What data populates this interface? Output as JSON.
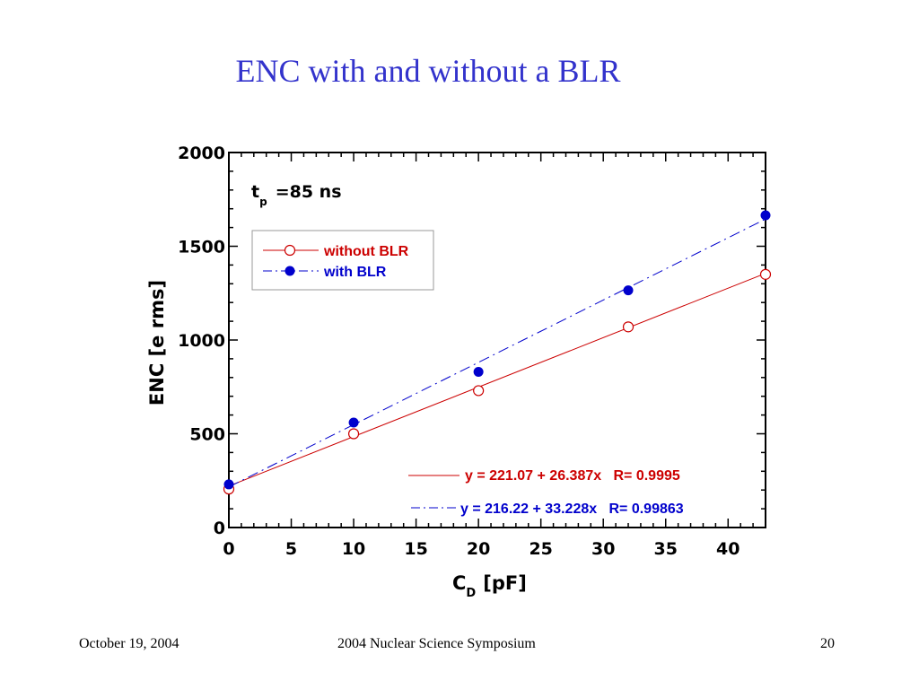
{
  "slide": {
    "title": "ENC with and without a BLR",
    "footer_left": "October 19, 2004",
    "footer_center": "2004 Nuclear Science Symposium",
    "footer_right": "20"
  },
  "chart_data": {
    "type": "scatter",
    "annotation": {
      "main": "t",
      "sub": "p",
      "suffix": "=85 ns"
    },
    "xlabel": {
      "main": "C",
      "sub": "D",
      "suffix": "[pF]"
    },
    "ylabel": "ENC [e rms]",
    "xlim": [
      0,
      43
    ],
    "ylim": [
      0,
      2000
    ],
    "xticks": [
      0,
      5,
      10,
      15,
      20,
      25,
      30,
      35,
      40
    ],
    "yticks": [
      0,
      500,
      1000,
      1500,
      2000
    ],
    "grid": false,
    "legend_position": "top-left",
    "series": [
      {
        "name": "without BLR",
        "color": "#cc0000",
        "marker": "open-circle",
        "line": "solid",
        "x": [
          0,
          10,
          20,
          32,
          43
        ],
        "y": [
          205,
          500,
          730,
          1070,
          1350
        ],
        "fit": {
          "intercept": 221.07,
          "slope": 26.387,
          "label": "y = 221.07 + 26.387x   R= 0.9995"
        }
      },
      {
        "name": "with BLR",
        "color": "#0000cc",
        "marker": "filled-circle",
        "line": "dash-dot",
        "x": [
          0,
          10,
          20,
          32,
          43
        ],
        "y": [
          230,
          560,
          830,
          1265,
          1665
        ],
        "fit": {
          "intercept": 216.22,
          "slope": 33.228,
          "label": "y = 216.22 + 33.228x   R= 0.99863"
        }
      }
    ]
  }
}
